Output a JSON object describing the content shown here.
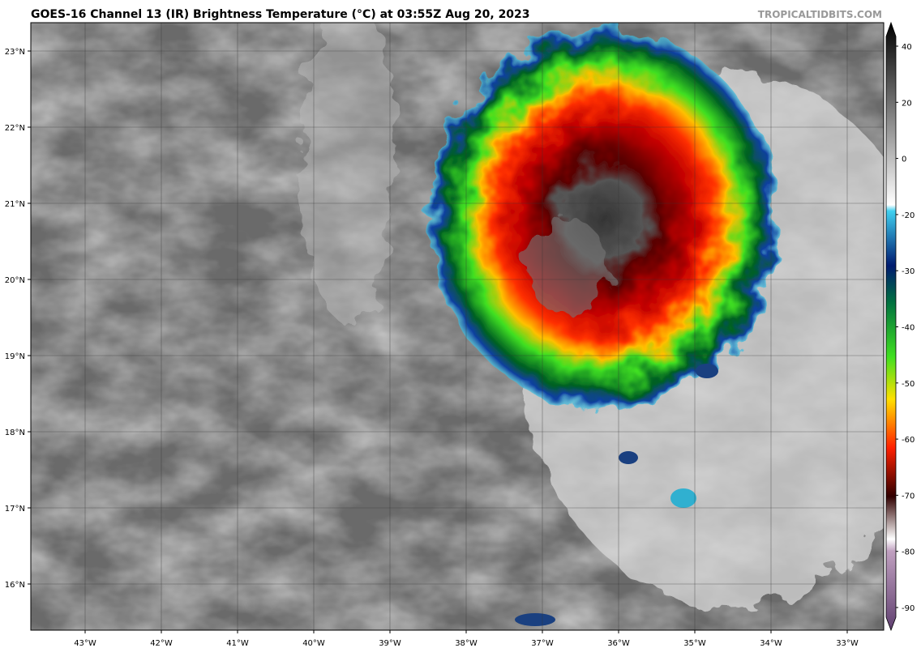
{
  "header": {
    "title": "GOES-16 Channel 13 (IR) Brightness Temperature (°C) at 03:55Z Aug 20, 2023",
    "source": "TROPICALTIDBITS.COM"
  },
  "map": {
    "lat_labels": [
      "23°N",
      "22°N",
      "21°N",
      "20°N",
      "19°N",
      "18°N",
      "17°N",
      "16°N"
    ],
    "lon_labels": [
      "43°W",
      "42°W",
      "41°W",
      "40°W",
      "39°W",
      "38°W",
      "37°W",
      "36°W",
      "35°W",
      "34°W",
      "33°W"
    ]
  },
  "colorbar": {
    "ticks": [
      40,
      20,
      0,
      -20,
      -30,
      -40,
      -50,
      -60,
      -70,
      -80,
      -90
    ]
  }
}
